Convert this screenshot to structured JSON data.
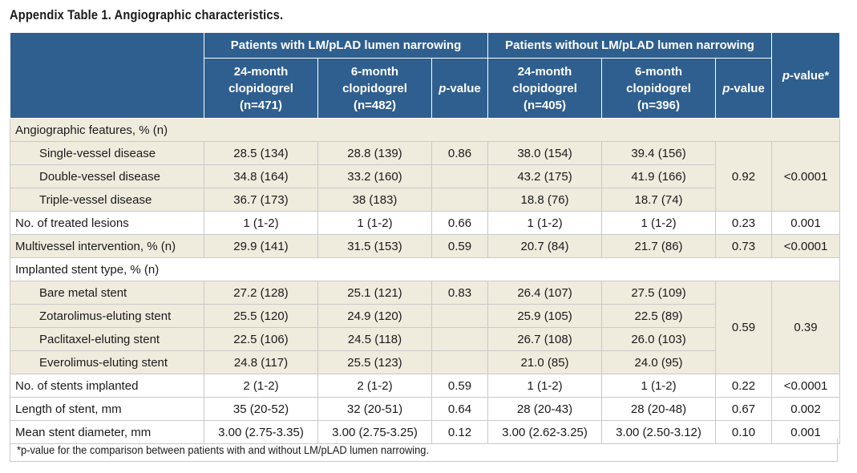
{
  "title": "Appendix Table 1. Angiographic characteristics.",
  "header": {
    "group1": "Patients with LM/pLAD lumen narrowing",
    "group2": "Patients without LM/pLAD lumen narrowing",
    "pvalue_overall": "p-value*",
    "cols": [
      {
        "l1": "24-month",
        "l2": "clopidogrel",
        "l3": "(n=471)"
      },
      {
        "l1": "6-month",
        "l2": "clopidogrel",
        "l3": "(n=482)"
      },
      {
        "p": "p-value"
      },
      {
        "l1": "24-month",
        "l2": "clopidogrel",
        "l3": "(n=405)"
      },
      {
        "l1": "6-month",
        "l2": "clopidogrel",
        "l3": "(n=396)"
      },
      {
        "p": "p-value"
      }
    ]
  },
  "sections": {
    "angio": "Angiographic features, % (n)",
    "stent_type": "Implanted stent type, % (n)"
  },
  "rows": {
    "single": [
      "Single-vessel disease",
      "28.5 (134)",
      "28.8 (139)",
      "0.86",
      "38.0 (154)",
      "39.4 (156)"
    ],
    "double": [
      "Double-vessel disease",
      "34.8 (164)",
      "33.2 (160)",
      "43.2 (175)",
      "41.9 (166)"
    ],
    "triple": [
      "Triple-vessel disease",
      "36.7 (173)",
      "38 (183)",
      "18.8 (76)",
      "18.7 (74)"
    ],
    "vessel_p2": "0.92",
    "vessel_p3": "<0.0001",
    "lesions": [
      "No. of treated lesions",
      "1 (1-2)",
      "1 (1-2)",
      "0.66",
      "1 (1-2)",
      "1 (1-2)",
      "0.23",
      "0.001"
    ],
    "multivessel": [
      "Multivessel intervention, % (n)",
      "29.9 (141)",
      "31.5 (153)",
      "0.59",
      "20.7 (84)",
      "21.7 (86)",
      "0.73",
      "<0.0001"
    ],
    "bms": [
      "Bare metal stent",
      "27.2 (128)",
      "25.1 (121)",
      "0.83",
      "26.4 (107)",
      "27.5 (109)"
    ],
    "zes": [
      "Zotarolimus-eluting stent",
      "25.5 (120)",
      "24.9 (120)",
      "25.9 (105)",
      "22.5 (89)"
    ],
    "pes": [
      "Paclitaxel-eluting stent",
      "22.5 (106)",
      "24.5 (118)",
      "26.7 (108)",
      "26.0 (103)"
    ],
    "ees": [
      "Everolimus-eluting stent",
      "24.8 (117)",
      "25.5 (123)",
      "21.0 (85)",
      "24.0 (95)"
    ],
    "stent_p2": "0.59",
    "stent_p3": "0.39",
    "n_stents": [
      "No. of stents implanted",
      "2 (1-2)",
      "2 (1-2)",
      "0.59",
      "1 (1-2)",
      "1 (1-2)",
      "0.22",
      "<0.0001"
    ],
    "length": [
      "Length of stent, mm",
      "35 (20-52)",
      "32 (20-51)",
      "0.64",
      "28 (20-43)",
      "28 (20-48)",
      "0.67",
      "0.002"
    ],
    "diameter": [
      "Mean stent diameter, mm",
      "3.00 (2.75-3.35)",
      "3.00 (2.75-3.25)",
      "0.12",
      "3.00 (2.62-3.25)",
      "3.00 (2.50-3.12)",
      "0.10",
      "0.001"
    ]
  },
  "footnote": "*p-value for the comparison between patients with and without LM/pLAD lumen narrowing.",
  "colors": {
    "header_bg": "#2f5f8f",
    "band_bg": "#efebdd",
    "border": "#c9c9c9"
  }
}
